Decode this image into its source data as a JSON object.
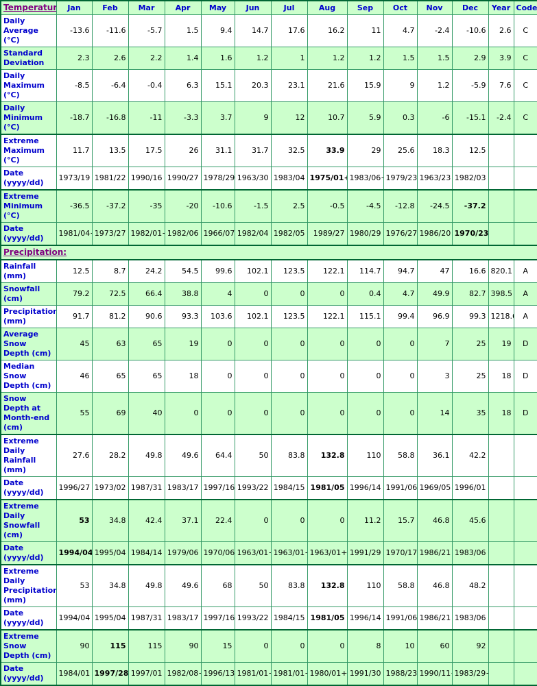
{
  "colors": {
    "grid_border": "#339966",
    "group_border": "#006633",
    "green_bg": "#CCFFCC",
    "white_bg": "#FFFFFF",
    "header_text": "#0000CC",
    "section_link": "#800080",
    "data_text": "#000000"
  },
  "table": {
    "corner_label": "Temperature:",
    "months": [
      "Jan",
      "Feb",
      "Mar",
      "Apr",
      "May",
      "Jun",
      "Jul",
      "Aug",
      "Sep",
      "Oct",
      "Nov",
      "Dec",
      "Year",
      "Code"
    ],
    "rows": [
      {
        "type": "data",
        "label": "Daily Average (°C)",
        "green": false,
        "thick_top": false,
        "cells": [
          "-13.6",
          "-11.6",
          "-5.7",
          "1.5",
          "9.4",
          "14.7",
          "17.6",
          "16.2",
          "11",
          "4.7",
          "-2.4",
          "-10.6",
          "2.6",
          "C"
        ],
        "bold_cols": []
      },
      {
        "type": "data",
        "label": "Standard Deviation",
        "green": true,
        "thick_top": false,
        "cells": [
          "2.3",
          "2.6",
          "2.2",
          "1.4",
          "1.6",
          "1.2",
          "1",
          "1.2",
          "1.2",
          "1.5",
          "1.5",
          "2.9",
          "3.9",
          "C"
        ],
        "bold_cols": []
      },
      {
        "type": "data",
        "label": "Daily Maximum (°C)",
        "green": false,
        "thick_top": false,
        "cells": [
          "-8.5",
          "-6.4",
          "-0.4",
          "6.3",
          "15.1",
          "20.3",
          "23.1",
          "21.6",
          "15.9",
          "9",
          "1.2",
          "-5.9",
          "7.6",
          "C"
        ],
        "bold_cols": []
      },
      {
        "type": "data",
        "label": "Daily Minimum (°C)",
        "green": true,
        "thick_top": false,
        "cells": [
          "-18.7",
          "-16.8",
          "-11",
          "-3.3",
          "3.7",
          "9",
          "12",
          "10.7",
          "5.9",
          "0.3",
          "-6",
          "-15.1",
          "-2.4",
          "C"
        ],
        "bold_cols": []
      },
      {
        "type": "data",
        "label": "Extreme Maximum (°C)",
        "green": false,
        "thick_top": true,
        "cells": [
          "11.7",
          "13.5",
          "17.5",
          "26",
          "31.1",
          "31.7",
          "32.5",
          "33.9",
          "29",
          "25.6",
          "18.3",
          "12.5",
          "",
          ""
        ],
        "bold_cols": [
          7
        ]
      },
      {
        "type": "data",
        "label": "Date (yyyy/dd)",
        "green": false,
        "thick_top": false,
        "cells": [
          "1973/19",
          "1981/22",
          "1990/16",
          "1990/27",
          "1978/29",
          "1963/30",
          "1983/04",
          "1975/01+",
          "1983/06+",
          "1979/23",
          "1963/23",
          "1982/03",
          "",
          ""
        ],
        "bold_cols": [
          7
        ]
      },
      {
        "type": "data",
        "label": "Extreme Minimum (°C)",
        "green": true,
        "thick_top": true,
        "cells": [
          "-36.5",
          "-37.2",
          "-35",
          "-20",
          "-10.6",
          "-1.5",
          "2.5",
          "-0.5",
          "-4.5",
          "-12.8",
          "-24.5",
          "-37.2",
          "",
          ""
        ],
        "bold_cols": [
          11
        ]
      },
      {
        "type": "data",
        "label": "Date (yyyy/dd)",
        "green": true,
        "thick_top": false,
        "cells": [
          "1981/04+",
          "1973/27",
          "1982/01+",
          "1982/06",
          "1966/07",
          "1982/04",
          "1982/05",
          "1989/27",
          "1980/29",
          "1976/27",
          "1986/20",
          "1970/23",
          "",
          ""
        ],
        "bold_cols": [
          11
        ]
      },
      {
        "type": "section",
        "label": "Precipitation:",
        "green": true,
        "thick_top": true
      },
      {
        "type": "data",
        "label": "Rainfall (mm)",
        "green": false,
        "thick_top": true,
        "cells": [
          "12.5",
          "8.7",
          "24.2",
          "54.5",
          "99.6",
          "102.1",
          "123.5",
          "122.1",
          "114.7",
          "94.7",
          "47",
          "16.6",
          "820.1",
          "A"
        ],
        "bold_cols": []
      },
      {
        "type": "data",
        "label": "Snowfall (cm)",
        "green": true,
        "thick_top": false,
        "cells": [
          "79.2",
          "72.5",
          "66.4",
          "38.8",
          "4",
          "0",
          "0",
          "0",
          "0.4",
          "4.7",
          "49.9",
          "82.7",
          "398.5",
          "A"
        ],
        "bold_cols": []
      },
      {
        "type": "data",
        "label": "Precipitation (mm)",
        "green": false,
        "thick_top": false,
        "cells": [
          "91.7",
          "81.2",
          "90.6",
          "93.3",
          "103.6",
          "102.1",
          "123.5",
          "122.1",
          "115.1",
          "99.4",
          "96.9",
          "99.3",
          "1218.6",
          "A"
        ],
        "bold_cols": []
      },
      {
        "type": "data",
        "label": "Average Snow Depth (cm)",
        "green": true,
        "thick_top": false,
        "cells": [
          "45",
          "63",
          "65",
          "19",
          "0",
          "0",
          "0",
          "0",
          "0",
          "0",
          "7",
          "25",
          "19",
          "D"
        ],
        "bold_cols": []
      },
      {
        "type": "data",
        "label": "Median Snow Depth (cm)",
        "green": false,
        "thick_top": false,
        "cells": [
          "46",
          "65",
          "65",
          "18",
          "0",
          "0",
          "0",
          "0",
          "0",
          "0",
          "3",
          "25",
          "18",
          "D"
        ],
        "bold_cols": []
      },
      {
        "type": "data",
        "label": "Snow Depth at Month-end (cm)",
        "green": true,
        "thick_top": false,
        "cells": [
          "55",
          "69",
          "40",
          "0",
          "0",
          "0",
          "0",
          "0",
          "0",
          "0",
          "14",
          "35",
          "18",
          "D"
        ],
        "bold_cols": []
      },
      {
        "type": "data",
        "label": "Extreme Daily Rainfall (mm)",
        "green": false,
        "thick_top": true,
        "cells": [
          "27.6",
          "28.2",
          "49.8",
          "49.6",
          "64.4",
          "50",
          "83.8",
          "132.8",
          "110",
          "58.8",
          "36.1",
          "42.2",
          "",
          ""
        ],
        "bold_cols": [
          7
        ]
      },
      {
        "type": "data",
        "label": "Date (yyyy/dd)",
        "green": false,
        "thick_top": false,
        "cells": [
          "1996/27",
          "1973/02",
          "1987/31",
          "1983/17",
          "1997/16",
          "1993/22",
          "1984/15",
          "1981/05",
          "1996/14",
          "1991/06",
          "1969/05",
          "1996/01",
          "",
          ""
        ],
        "bold_cols": [
          7
        ]
      },
      {
        "type": "data",
        "label": "Extreme Daily Snowfall (cm)",
        "green": true,
        "thick_top": true,
        "cells": [
          "53",
          "34.8",
          "42.4",
          "37.1",
          "22.4",
          "0",
          "0",
          "0",
          "11.2",
          "15.7",
          "46.8",
          "45.6",
          "",
          ""
        ],
        "bold_cols": [
          0
        ]
      },
      {
        "type": "data",
        "label": "Date (yyyy/dd)",
        "green": true,
        "thick_top": false,
        "cells": [
          "1994/04",
          "1995/04",
          "1984/14",
          "1979/06",
          "1970/06",
          "1963/01+",
          "1963/01+",
          "1963/01+",
          "1991/29",
          "1970/17",
          "1986/21",
          "1983/06",
          "",
          ""
        ],
        "bold_cols": [
          0
        ]
      },
      {
        "type": "data",
        "label": "Extreme Daily Precipitation (mm)",
        "green": false,
        "thick_top": true,
        "cells": [
          "53",
          "34.8",
          "49.8",
          "49.6",
          "68",
          "50",
          "83.8",
          "132.8",
          "110",
          "58.8",
          "46.8",
          "48.2",
          "",
          ""
        ],
        "bold_cols": [
          7
        ]
      },
      {
        "type": "data",
        "label": "Date (yyyy/dd)",
        "green": false,
        "thick_top": false,
        "cells": [
          "1994/04",
          "1995/04",
          "1987/31",
          "1983/17",
          "1997/16",
          "1993/22",
          "1984/15",
          "1981/05",
          "1996/14",
          "1991/06",
          "1986/21",
          "1983/06",
          "",
          ""
        ],
        "bold_cols": [
          7
        ]
      },
      {
        "type": "data",
        "label": "Extreme Snow Depth (cm)",
        "green": true,
        "thick_top": true,
        "cells": [
          "90",
          "115",
          "115",
          "90",
          "15",
          "0",
          "0",
          "0",
          "8",
          "10",
          "60",
          "92",
          "",
          ""
        ],
        "bold_cols": [
          1
        ]
      },
      {
        "type": "data",
        "label": "Date (yyyy/dd)",
        "green": true,
        "thick_top": false,
        "cells": [
          "1984/01",
          "1997/28",
          "1997/01",
          "1982/08+",
          "1996/13",
          "1981/01+",
          "1981/01+",
          "1980/01+",
          "1991/30",
          "1988/23",
          "1990/11+",
          "1983/29+",
          "",
          ""
        ],
        "bold_cols": [
          1
        ]
      }
    ]
  }
}
